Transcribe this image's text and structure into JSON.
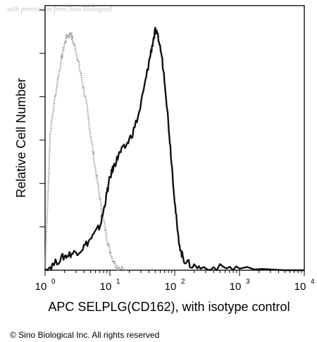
{
  "watermark": "with permission from Sino Biological",
  "copyright": "© Sino Biological Inc. All rights reserved",
  "chart_data": {
    "type": "line",
    "title": "",
    "xlabel": "APC SELPLG(CD162), with isotype control",
    "ylabel": "Relative Cell Number",
    "xscale": "log",
    "xlim": [
      1,
      10000
    ],
    "ylim": [
      0,
      100
    ],
    "x_ticks": [
      {
        "base": "10",
        "exp": "0",
        "value": 1
      },
      {
        "base": "10",
        "exp": "1",
        "value": 10
      },
      {
        "base": "10",
        "exp": "2",
        "value": 100
      },
      {
        "base": "10",
        "exp": "3",
        "value": 1000
      },
      {
        "base": "10",
        "exp": "4",
        "value": 10000
      }
    ],
    "grid": false,
    "legend": "none",
    "series": [
      {
        "color": "#9a9a9a",
        "style": "dotted",
        "x": [
          1.0,
          1.2,
          1.4,
          1.6,
          1.8,
          2.0,
          2.2,
          2.5,
          2.7,
          3.0,
          3.3,
          3.6,
          4.0,
          4.5,
          5.0,
          5.6,
          6.3,
          7.1,
          8.0,
          9.0,
          10.0,
          11.2,
          12.6,
          14.1,
          17.8
        ],
        "y": [
          0,
          55,
          68,
          78,
          85,
          91,
          94,
          95,
          92,
          88,
          83,
          78,
          72,
          64,
          55,
          46,
          37,
          28,
          20,
          13,
          8,
          4,
          2,
          1,
          0
        ]
      },
      {
        "color": "#111111",
        "style": "solid",
        "x": [
          1.0,
          1.3,
          1.8,
          2.2,
          2.8,
          3.5,
          4.5,
          5.6,
          7.1,
          8.0,
          9.0,
          10.0,
          11.2,
          12.6,
          14.1,
          17.8,
          22.4,
          28.2,
          35.5,
          39.8,
          44.7,
          50.1,
          56.2,
          63.1,
          70.8,
          79.4,
          89.1,
          100,
          112,
          126,
          141,
          178,
          250,
          500,
          1000,
          5000,
          10000
        ],
        "y": [
          0,
          2,
          5,
          6,
          7,
          8,
          11,
          14,
          18,
          24,
          31,
          37,
          41,
          44,
          47,
          50,
          55,
          63,
          76,
          83,
          90,
          96,
          93,
          86,
          75,
          60,
          44,
          28,
          14,
          7,
          4,
          2,
          1,
          1,
          1,
          0,
          0
        ]
      }
    ]
  }
}
